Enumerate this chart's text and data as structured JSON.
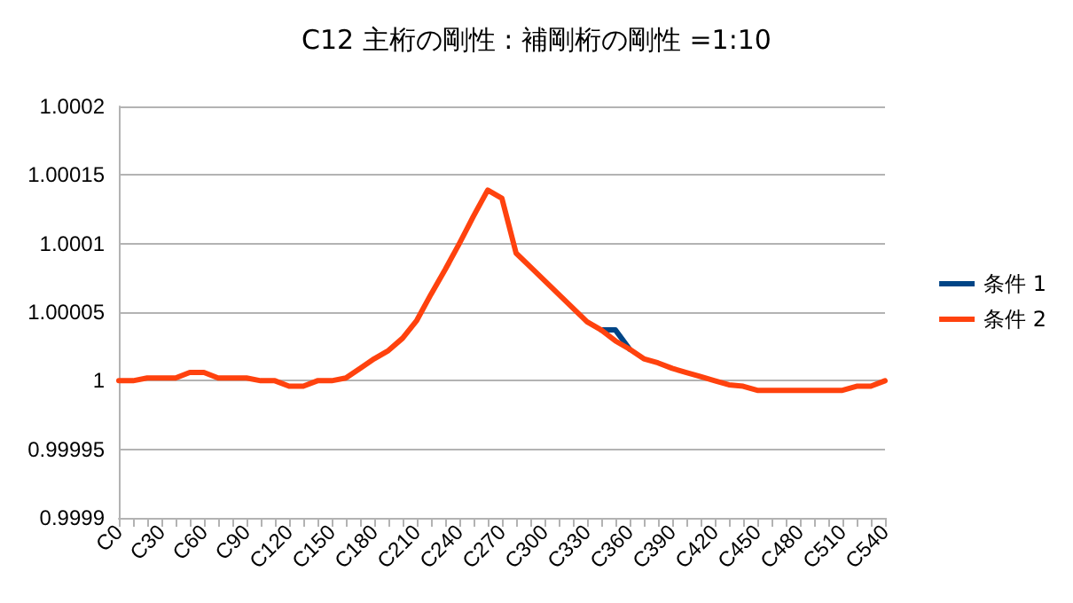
{
  "chart_data": {
    "type": "line",
    "title": "C12 主桁の剛性 : 補剛桁の剛性 =1:10",
    "categories": [
      "C0",
      null,
      null,
      "C30",
      null,
      null,
      "C60",
      null,
      null,
      "C90",
      null,
      null,
      "C120",
      null,
      null,
      "C150",
      null,
      null,
      "C180",
      null,
      null,
      "C210",
      null,
      null,
      "C240",
      null,
      null,
      "C270",
      null,
      null,
      "C300",
      null,
      null,
      "C330",
      null,
      null,
      "C360",
      null,
      null,
      "C390",
      null,
      null,
      "C420",
      null,
      null,
      "C450",
      null,
      null,
      "C480",
      null,
      null,
      "C510",
      null,
      null,
      "C540"
    ],
    "series": [
      {
        "name": "条件 1",
        "color": "#004586",
        "values": [
          null,
          null,
          null,
          null,
          null,
          null,
          null,
          null,
          null,
          null,
          null,
          null,
          null,
          null,
          null,
          null,
          null,
          null,
          null,
          null,
          null,
          null,
          null,
          null,
          null,
          null,
          null,
          null,
          null,
          null,
          null,
          null,
          null,
          null,
          1.000037,
          1.000037,
          1.000023,
          null,
          null,
          null,
          null,
          null,
          null,
          null,
          null,
          null,
          null,
          null,
          null,
          null,
          null,
          null,
          null,
          null,
          null
        ]
      },
      {
        "name": "条件 2",
        "color": "#ff420e",
        "values": [
          1,
          1,
          1.000002,
          1.000002,
          1.000002,
          1.000006,
          1.000006,
          1.000002,
          1.000002,
          1.000002,
          1,
          1,
          0.999996,
          0.999996,
          1,
          1,
          1.000002,
          1.000009,
          1.000016,
          1.000022,
          1.000031,
          1.000044,
          1.000063,
          1.000081,
          1.0001,
          1.00012,
          1.000139,
          1.000133,
          1.000093,
          1.000083,
          1.000073,
          1.000063,
          1.000053,
          1.000043,
          1.000037,
          1.000029,
          1.000023,
          1.000016,
          1.000013,
          1.000009,
          1.000006,
          1.000003,
          1,
          0.999997,
          0.999996,
          0.999993,
          0.999993,
          0.999993,
          0.999993,
          0.999993,
          0.999993,
          0.999993,
          0.999996,
          0.999996,
          1
        ]
      }
    ],
    "ylim": [
      0.9999,
      1.0002
    ],
    "yticks": [
      0.9999,
      0.99995,
      1,
      1.00005,
      1.0001,
      1.00015,
      1.0002
    ],
    "grid": "y",
    "legend": "right",
    "marker": "none",
    "line_style": "solid"
  }
}
